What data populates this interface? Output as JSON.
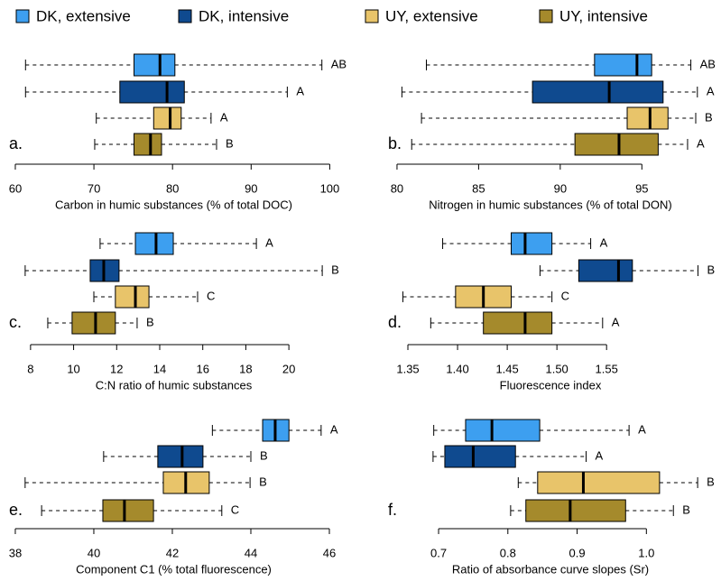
{
  "legend": [
    {
      "name": "DK, extensive",
      "color": "#3d9ff0"
    },
    {
      "name": "DK, intensive",
      "color": "#0f4a8f"
    },
    {
      "name": "UY, extensive",
      "color": "#e8c46a"
    },
    {
      "name": "UY, intensive",
      "color": "#a58a2c"
    }
  ],
  "chart_data": [
    {
      "type": "boxplot",
      "label": "a.",
      "xlabel": "Carbon in humic substances (% of total DOC)",
      "xlim": [
        59.2,
        101.1
      ],
      "xticks": [
        60,
        70,
        80,
        90,
        100
      ],
      "boxes": [
        {
          "min": 61.3,
          "q1": 75.1,
          "median": 78.4,
          "q3": 80.3,
          "max": 99.0,
          "letter": "AB"
        },
        {
          "min": 61.3,
          "q1": 73.3,
          "median": 79.3,
          "q3": 81.5,
          "max": 94.6,
          "letter": "A"
        },
        {
          "min": 70.3,
          "q1": 77.6,
          "median": 79.7,
          "q3": 81.1,
          "max": 84.9,
          "letter": "A"
        },
        {
          "min": 70.1,
          "q1": 75.1,
          "median": 77.2,
          "q3": 78.6,
          "max": 85.6,
          "letter": "B"
        }
      ]
    },
    {
      "type": "boxplot",
      "label": "b.",
      "xlabel": "Nitrogen in humic substances (% of total DON)",
      "xlim": [
        79.45,
        99.35
      ],
      "xticks": [
        80,
        85,
        90,
        95
      ],
      "boxes": [
        {
          "min": 81.8,
          "q1": 92.1,
          "median": 94.7,
          "q3": 95.6,
          "max": 98.0,
          "letter": "AB"
        },
        {
          "min": 80.3,
          "q1": 88.3,
          "median": 93.0,
          "q3": 96.3,
          "max": 98.4,
          "letter": "A"
        },
        {
          "min": 81.5,
          "q1": 94.1,
          "median": 95.5,
          "q3": 96.6,
          "max": 98.3,
          "letter": "B"
        },
        {
          "min": 80.9,
          "q1": 90.9,
          "median": 93.6,
          "q3": 96.0,
          "max": 97.8,
          "letter": "A"
        }
      ]
    },
    {
      "type": "boxplot",
      "label": "c.",
      "xlabel": "C:N ratio of humic substances",
      "xlim": [
        7.0,
        22.3
      ],
      "xticks": [
        8,
        10,
        12,
        14,
        16,
        18,
        20
      ],
      "boxes": [
        {
          "min": 11.23,
          "q1": 12.87,
          "median": 13.83,
          "q3": 14.63,
          "max": 18.49,
          "letter": "A"
        },
        {
          "min": 7.75,
          "q1": 10.77,
          "median": 11.4,
          "q3": 12.11,
          "max": 21.55,
          "letter": "B"
        },
        {
          "min": 10.94,
          "q1": 11.94,
          "median": 12.87,
          "q3": 13.5,
          "max": 15.76,
          "letter": "C"
        },
        {
          "min": 8.8,
          "q1": 9.93,
          "median": 11.02,
          "q3": 11.94,
          "max": 12.95,
          "letter": "B"
        }
      ]
    },
    {
      "type": "boxplot",
      "label": "d.",
      "xlabel": "Fluorescence index",
      "xlim": [
        1.33,
        1.657
      ],
      "xticks": [
        1.35,
        {
          "value": 1.4,
          "label": "1.40"
        },
        1.45,
        {
          "value": 1.5,
          "label": "1.50"
        },
        1.55
      ],
      "boxes": [
        {
          "min": 1.385,
          "q1": 1.454,
          "median": 1.468,
          "q3": 1.495,
          "max": 1.534,
          "letter": "A"
        },
        {
          "min": 1.483,
          "q1": 1.522,
          "median": 1.562,
          "q3": 1.576,
          "max": 1.642,
          "letter": "B"
        },
        {
          "min": 1.345,
          "q1": 1.398,
          "median": 1.426,
          "q3": 1.454,
          "max": 1.495,
          "letter": "C"
        },
        {
          "min": 1.373,
          "q1": 1.426,
          "median": 1.468,
          "q3": 1.495,
          "max": 1.546,
          "letter": "A"
        }
      ]
    },
    {
      "type": "boxplot",
      "label": "e.",
      "xlabel": "Component C1 (% total fluorescence)",
      "xlim": [
        37.84,
        46.23
      ],
      "xticks": [
        38,
        40,
        42,
        44,
        46
      ],
      "boxes": [
        {
          "min": 43.02,
          "q1": 44.3,
          "median": 44.62,
          "q3": 44.97,
          "max": 45.79,
          "letter": "A"
        },
        {
          "min": 40.25,
          "q1": 41.63,
          "median": 42.25,
          "q3": 42.78,
          "max": 44.0,
          "letter": "B"
        },
        {
          "min": 38.25,
          "q1": 41.77,
          "median": 42.34,
          "q3": 42.94,
          "max": 43.98,
          "letter": "B"
        },
        {
          "min": 38.67,
          "q1": 40.23,
          "median": 40.78,
          "q3": 41.52,
          "max": 43.26,
          "letter": "C"
        }
      ]
    },
    {
      "type": "boxplot",
      "label": "f.",
      "xlabel": "Ratio of absorbance curve slopes (Sr)",
      "xlim": [
        0.627,
        1.096
      ],
      "xticks": [
        0.7,
        0.8,
        0.9,
        {
          "value": 1,
          "label": "1.0"
        }
      ],
      "boxes": [
        {
          "min": 0.693,
          "q1": 0.739,
          "median": 0.777,
          "q3": 0.846,
          "max": 0.975,
          "letter": "A"
        },
        {
          "min": 0.692,
          "q1": 0.709,
          "median": 0.75,
          "q3": 0.811,
          "max": 0.913,
          "letter": "A"
        },
        {
          "min": 0.815,
          "q1": 0.843,
          "median": 0.909,
          "q3": 1.019,
          "max": 1.074,
          "letter": "B"
        },
        {
          "min": 0.804,
          "q1": 0.826,
          "median": 0.89,
          "q3": 0.97,
          "max": 1.039,
          "letter": "B"
        }
      ]
    }
  ]
}
